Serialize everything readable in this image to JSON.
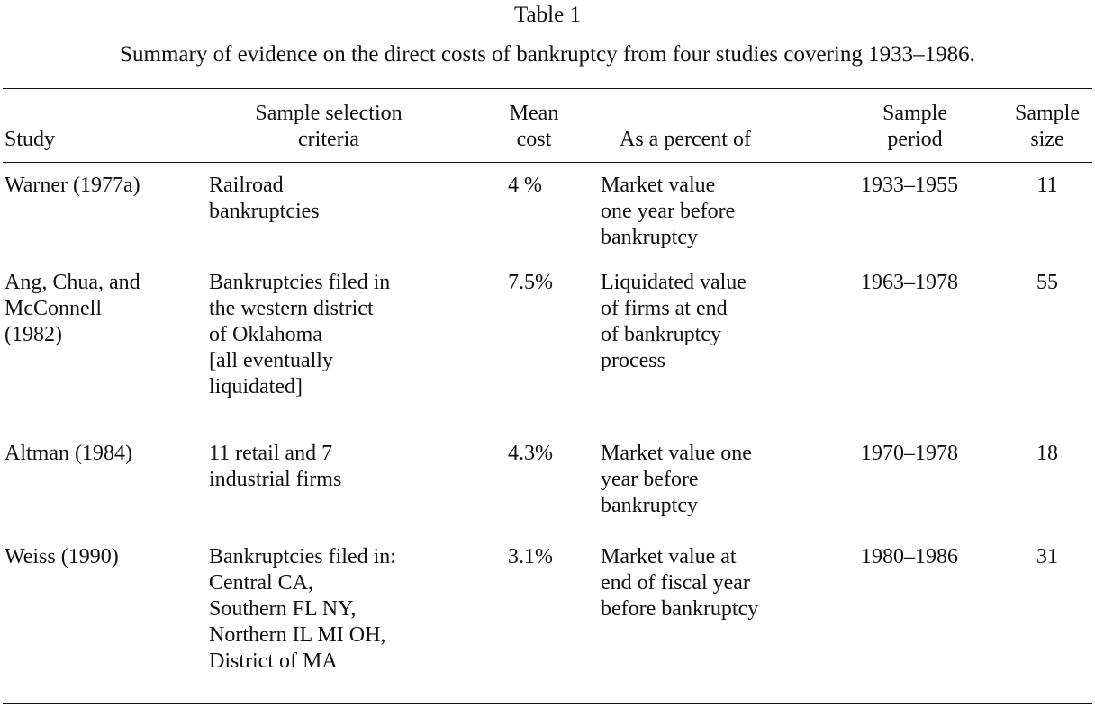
{
  "table_label": "Table 1",
  "caption": "Summary of evidence on the direct costs of bankruptcy from four studies covering 1933–1986.",
  "headers": {
    "study": "Study",
    "criteria": [
      "Sample selection",
      "criteria"
    ],
    "mean_cost": [
      "Mean",
      "cost"
    ],
    "percent_of": "As a percent of",
    "period": [
      "Sample",
      "period"
    ],
    "size": [
      "Sample",
      "size"
    ]
  },
  "rows": [
    {
      "study": [
        "Warner (1977a)"
      ],
      "criteria": [
        "Railroad",
        "bankruptcies"
      ],
      "mean_cost": "4 %",
      "percent_of": [
        "Market value",
        "one year before",
        "bankruptcy"
      ],
      "period": "1933–1955",
      "size": "11"
    },
    {
      "study": [
        "Ang, Chua, and",
        "McConnell",
        "(1982)"
      ],
      "criteria": [
        "Bankruptcies filed in",
        "the western district",
        "of Oklahoma",
        "[all eventually",
        "liquidated]"
      ],
      "mean_cost": "7.5%",
      "percent_of": [
        "Liquidated value",
        "of firms at end",
        "of bankruptcy",
        "process"
      ],
      "period": "1963–1978",
      "size": "55"
    },
    {
      "study": [
        "Altman (1984)"
      ],
      "criteria": [
        "11 retail and 7",
        "industrial firms"
      ],
      "mean_cost": "4.3%",
      "percent_of": [
        "Market value one",
        "year before",
        "bankruptcy"
      ],
      "period": "1970–1978",
      "size": "18"
    },
    {
      "study": [
        "Weiss (1990)"
      ],
      "criteria": [
        "Bankruptcies filed in:",
        "Central CA,",
        "Southern FL NY,",
        "Northern IL MI OH,",
        "District of MA"
      ],
      "mean_cost": "3.1%",
      "percent_of": [
        "Market value at",
        "end of fiscal year",
        "before bankruptcy"
      ],
      "period": "1980–1986",
      "size": "31"
    }
  ]
}
